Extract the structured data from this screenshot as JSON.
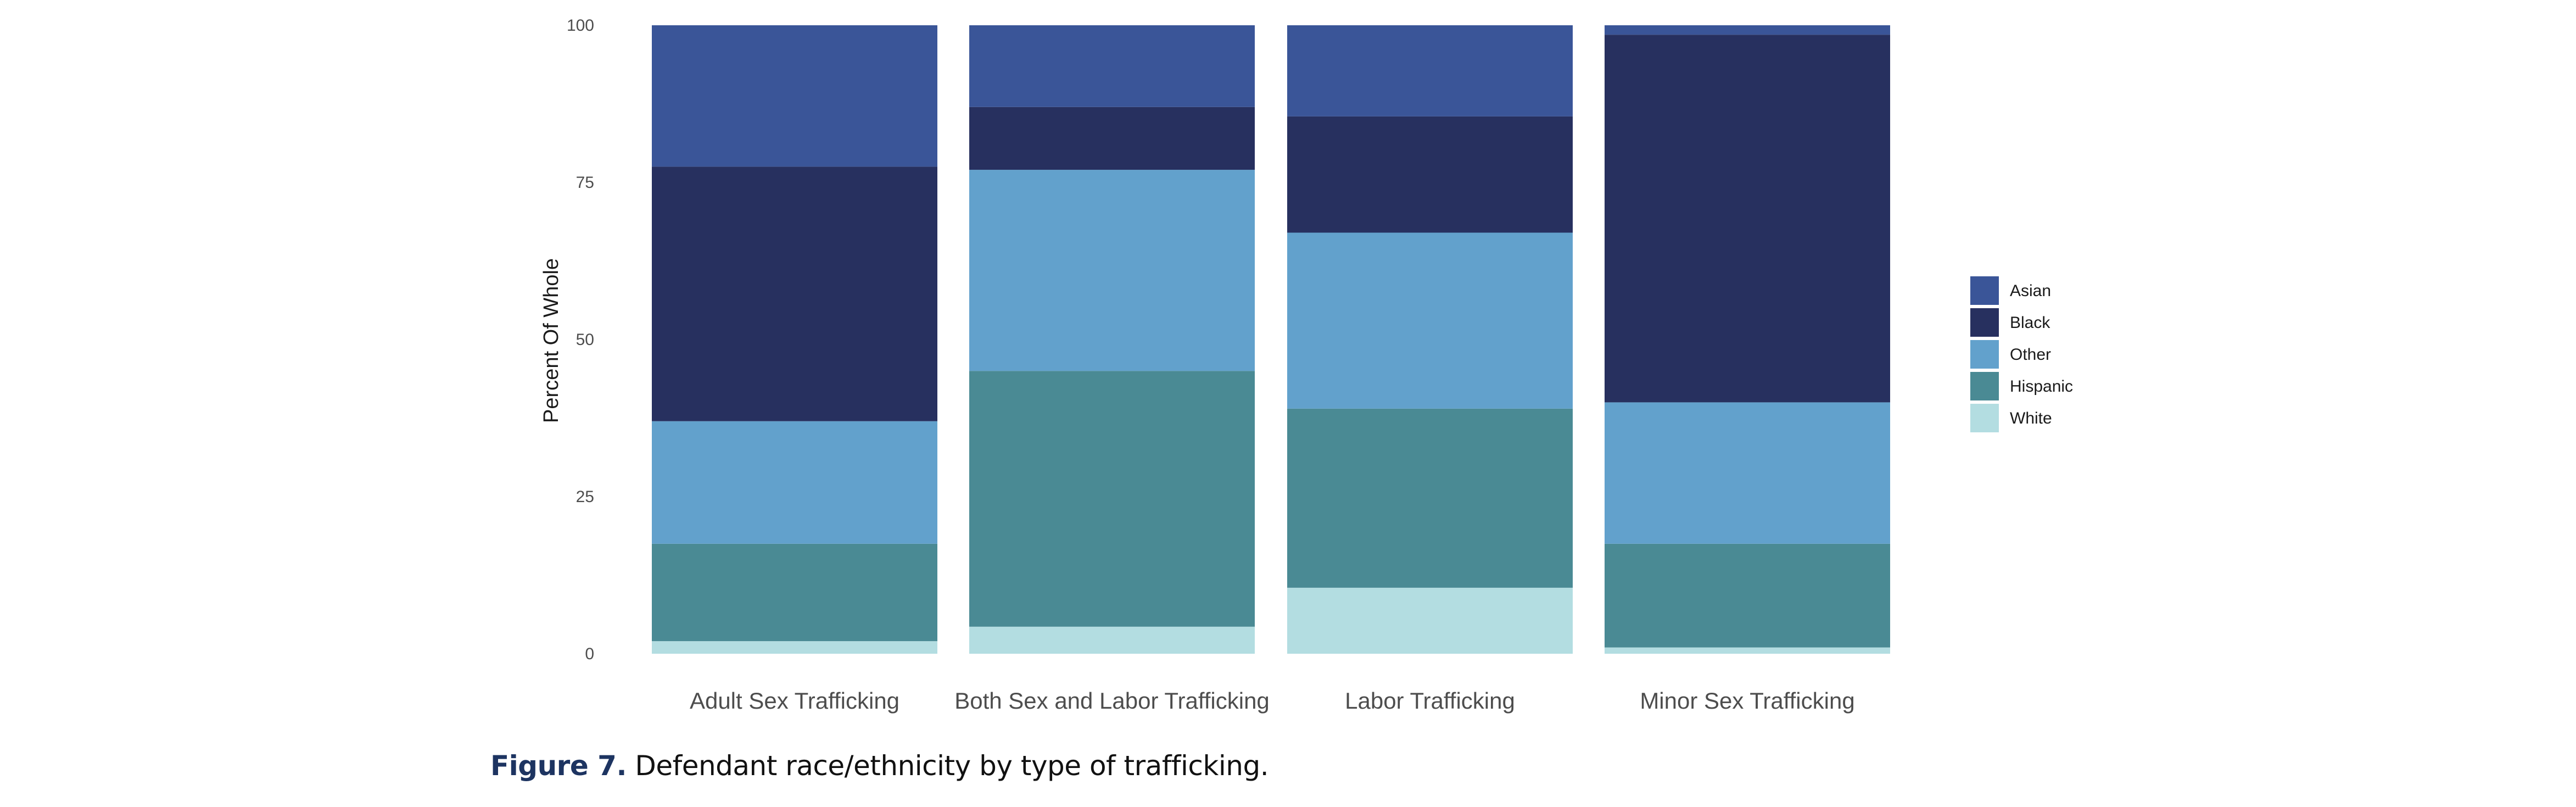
{
  "chart_data": {
    "type": "bar",
    "stacked": true,
    "title": "",
    "xlabel": "",
    "ylabel": "Percent Of Whole",
    "ylim": [
      0,
      100
    ],
    "yticks": [
      0,
      25,
      50,
      75,
      100
    ],
    "grid": false,
    "legend_position": "right",
    "categories": [
      "Adult Sex Trafficking",
      "Both Sex and Labor Trafficking",
      "Labor Trafficking",
      "Minor Sex Trafficking"
    ],
    "series": [
      {
        "name": "White",
        "color": "#b3dde1",
        "values": [
          2,
          4.3,
          10.5,
          1
        ]
      },
      {
        "name": "Hispanic",
        "color": "#4a8a94",
        "values": [
          15.5,
          40.7,
          28.5,
          16.5
        ]
      },
      {
        "name": "Other",
        "color": "#62a1cc",
        "values": [
          19.5,
          32,
          28,
          22.5
        ]
      },
      {
        "name": "Black",
        "color": "#27305f",
        "values": [
          40.5,
          10,
          18.5,
          58.5
        ]
      },
      {
        "name": "Asian",
        "color": "#3a5598",
        "values": [
          22.5,
          13,
          14.5,
          1.5
        ]
      }
    ],
    "legend_order": [
      "Asian",
      "Black",
      "Other",
      "Hispanic",
      "White"
    ]
  },
  "caption": {
    "figure_number": "Figure 7.",
    "text": " Defendant race/ethnicity by type of trafficking."
  }
}
